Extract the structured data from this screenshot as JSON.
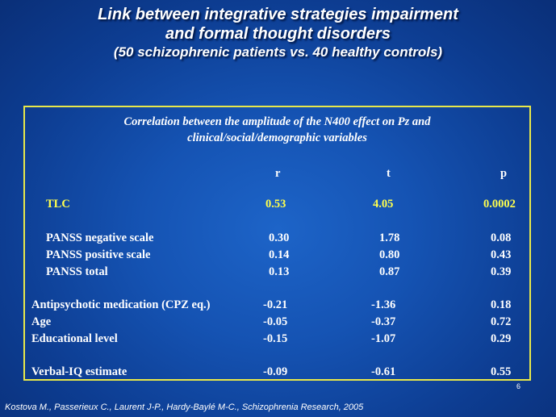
{
  "title": {
    "line1": "Link between integrative strategies impairment",
    "line2": "and formal thought disorders",
    "line3": "(50 schizophrenic patients vs. 40 healthy controls)"
  },
  "table": {
    "caption_line1": "Correlation between the amplitude of the N400 effect on Pz and",
    "caption_line2": "clinical/social/demographic variables",
    "headers": {
      "r": "r",
      "t": "t",
      "p": "p"
    },
    "rows": [
      {
        "label": "TLC",
        "r": "0.53",
        "t": "4.05",
        "p": "0.0002"
      },
      {
        "label": "PANSS negative scale",
        "r": "0.30",
        "t": "1.78",
        "p": "0.08"
      },
      {
        "label": "PANSS positive scale",
        "r": "0.14",
        "t": "0.80",
        "p": "0.43"
      },
      {
        "label": "PANSS total",
        "r": "0.13",
        "t": "0.87",
        "p": "0.39"
      },
      {
        "label": "Antipsychotic medication (CPZ eq.)",
        "r": "-0.21",
        "t": "-1.36",
        "p": "0.18"
      },
      {
        "label": "Age",
        "r": "-0.05",
        "t": "-0.37",
        "p": "0.72"
      },
      {
        "label": "Educational level",
        "r": "-0.15",
        "t": "-1.07",
        "p": "0.29"
      },
      {
        "label": "Verbal-IQ estimate",
        "r": "-0.09",
        "t": "-0.61",
        "p": "0.55"
      }
    ]
  },
  "page_number": "6",
  "citation": "Kostova M., Passerieux C., Laurent J-P., Hardy-Baylé M-C., Schizophrenia Research, 2005",
  "colors": {
    "highlight": "#ffff4d",
    "frame": "#e8e84a",
    "text": "#ffffff"
  }
}
